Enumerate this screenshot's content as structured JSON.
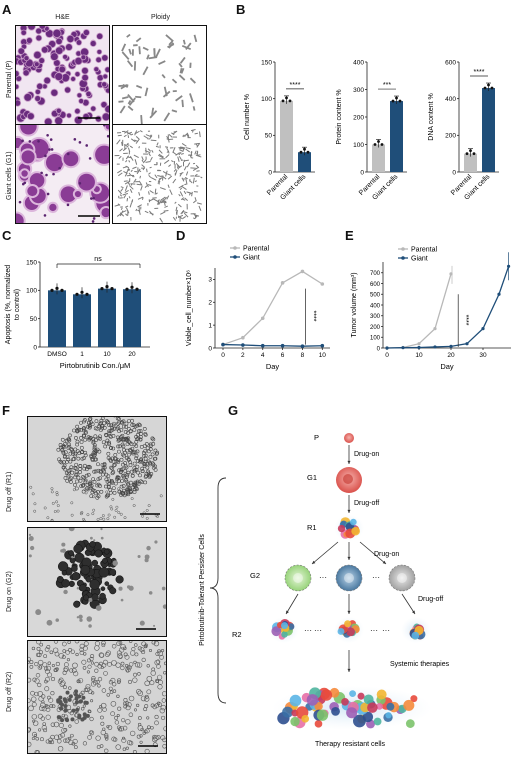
{
  "panel_labels": {
    "A": "A",
    "B": "B",
    "C": "C",
    "D": "D",
    "E": "E",
    "F": "F",
    "G": "G"
  },
  "panelA": {
    "col_he": "H&E",
    "col_ploidy": "Ploidy",
    "row_parental": "Parental (P)",
    "row_giant": "Giant cells (G1)"
  },
  "panelB": {
    "charts": [
      {
        "ylabel": "Cell number %",
        "ymax": 150,
        "ticks": [
          "0",
          "50",
          "100",
          "150"
        ],
        "values": [
          97,
          27
        ],
        "sig": "****",
        "colors": [
          "#c0c0c0",
          "#1f4e79"
        ]
      },
      {
        "ylabel": "Protein content %",
        "ymax": 400,
        "ticks": [
          "0",
          "100",
          "200",
          "300",
          "400"
        ],
        "values": [
          100,
          258
        ],
        "sig": "***",
        "colors": [
          "#c0c0c0",
          "#1f4e79"
        ]
      },
      {
        "ylabel": "DNA content %",
        "ymax": 600,
        "ticks": [
          "0",
          "200",
          "400",
          "600"
        ],
        "values": [
          100,
          458
        ],
        "sig": "****",
        "colors": [
          "#c0c0c0",
          "#1f4e79"
        ]
      }
    ],
    "categories": [
      "Parental",
      "Giant cells"
    ]
  },
  "chart_data": [
    {
      "type": "bar",
      "categories": [
        "Parental",
        "Giant cells"
      ],
      "values": [
        97,
        27
      ],
      "ylabel": "Cell number %",
      "ylim": [
        0,
        150
      ]
    },
    {
      "type": "bar",
      "categories": [
        "Parental",
        "Giant cells"
      ],
      "values": [
        100,
        258
      ],
      "ylabel": "Protein content %",
      "ylim": [
        0,
        400
      ]
    },
    {
      "type": "bar",
      "categories": [
        "Parental",
        "Giant cells"
      ],
      "values": [
        100,
        458
      ],
      "ylabel": "DNA content %",
      "ylim": [
        0,
        600
      ]
    },
    {
      "type": "bar",
      "categories": [
        "DMSO",
        "1",
        "10",
        "20"
      ],
      "values": [
        100,
        93,
        103,
        102
      ],
      "xlabel": "Pirtobrutinib Con./μM",
      "ylabel": "Apoptosis (%, normalized to control)",
      "ylim": [
        0,
        150
      ]
    },
    {
      "type": "line",
      "x": [
        0,
        2,
        4,
        6,
        8,
        10
      ],
      "series": [
        {
          "name": "Parental",
          "values": [
            0.15,
            0.45,
            1.3,
            2.85,
            3.35,
            2.8
          ]
        },
        {
          "name": "Giant",
          "values": [
            0.15,
            0.13,
            0.1,
            0.1,
            0.08,
            0.1
          ]
        }
      ],
      "xlabel": "Day",
      "ylabel": "Viable_cell_number×10⁶",
      "ylim": [
        0,
        3.5
      ]
    },
    {
      "type": "line",
      "series": [
        {
          "name": "Parental",
          "x": [
            0,
            5,
            10,
            15,
            20
          ],
          "values": [
            0,
            5,
            40,
            180,
            690
          ]
        },
        {
          "name": "Giant",
          "x": [
            0,
            5,
            10,
            15,
            20,
            25,
            30,
            35,
            38
          ],
          "values": [
            0,
            3,
            5,
            10,
            15,
            40,
            180,
            500,
            760
          ]
        }
      ],
      "xlabel": "Day",
      "ylabel": "Tumor volume (mm³)",
      "ylim": [
        0,
        800
      ]
    }
  ],
  "panelC": {
    "ylabel": "Apoptosis (%, normalized",
    "ylabel2": "to control)",
    "xlabel": "Pirtobrutinib Con./μM",
    "categories": [
      "DMSO",
      "1",
      "10",
      "20"
    ],
    "values": [
      100,
      93,
      103,
      102
    ],
    "ticks": [
      "0",
      "50",
      "100",
      "150"
    ],
    "sig": "ns",
    "color": "#1f4e79"
  },
  "panelD": {
    "ylabel": "Viable_cell_number×10⁶",
    "xlabel": "Day",
    "legend": [
      "Parental",
      "Giant"
    ],
    "xticks": [
      "0",
      "2",
      "4",
      "6",
      "8",
      "10"
    ],
    "yticks": [
      "0",
      "1",
      "2",
      "3"
    ],
    "sig": "****",
    "parental": [
      0.15,
      0.45,
      1.3,
      2.85,
      3.35,
      2.8
    ],
    "giant": [
      0.15,
      0.13,
      0.1,
      0.1,
      0.08,
      0.1
    ]
  },
  "panelE": {
    "ylabel": "Tumor volume (mm³)",
    "xlabel": "Day",
    "legend": [
      "Parental",
      "Giant"
    ],
    "xticks": [
      "0",
      "10",
      "20",
      "30"
    ],
    "yticks": [
      "0",
      "100",
      "200",
      "300",
      "400",
      "500",
      "600",
      "700"
    ],
    "sig": "****"
  },
  "panelF": {
    "rows": [
      "Drug off (R1)",
      "Drug on (G2)",
      "Drug off (R2)"
    ]
  },
  "panelG": {
    "labels": {
      "P": "P",
      "G1": "G1",
      "R1": "R1",
      "G2": "G2",
      "R2": "R2"
    },
    "drug_on_1": "Drug-on",
    "drug_off_1": "Drug-off",
    "drug_on_2": "Drug-on",
    "drug_off_2": "Drug-off",
    "dots": "···",
    "systemic": "Systemic therapies",
    "resistant": "Therapy resistant cells",
    "bracket": "Pirtobrutinib-Tolerant Persister Cells"
  }
}
